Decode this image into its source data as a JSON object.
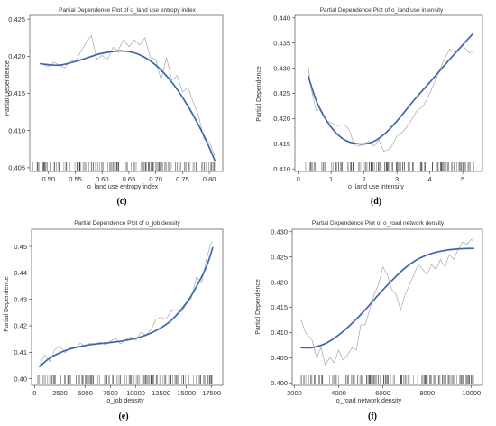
{
  "colors": {
    "smooth": "#3d67a8",
    "raw": "#9a9a9a",
    "rug": "#333333",
    "frame": "#333333"
  },
  "chart_data": [
    {
      "type": "line",
      "caption": "(c)",
      "title": "Partial Dependence Plot of o_land use entropy index",
      "xlabel": "o_land use entropy index",
      "ylabel": "Partial Dependence",
      "xlim": [
        0.465,
        0.825
      ],
      "ylim": [
        0.4045,
        0.4255
      ],
      "xticks": [
        0.5,
        0.55,
        0.6,
        0.65,
        0.7,
        0.75,
        0.8
      ],
      "xtick_labels": [
        "0.50",
        "0.55",
        "0.60",
        "0.65",
        "0.70",
        "0.75",
        "0.80"
      ],
      "yticks": [
        0.405,
        0.41,
        0.415,
        0.42,
        0.425
      ],
      "ytick_labels": [
        "0.405",
        "0.410",
        "0.415",
        "0.420",
        "0.425"
      ],
      "series": [
        {
          "role": "smooth",
          "x": [
            0.485,
            0.52,
            0.56,
            0.6,
            0.64,
            0.67,
            0.7,
            0.73,
            0.76,
            0.79,
            0.81
          ],
          "y": [
            0.419,
            0.4188,
            0.4195,
            0.4204,
            0.4207,
            0.4202,
            0.4188,
            0.4165,
            0.4133,
            0.4093,
            0.406
          ]
        },
        {
          "role": "raw",
          "x": [
            0.485,
            0.5,
            0.51,
            0.52,
            0.53,
            0.54,
            0.55,
            0.56,
            0.57,
            0.58,
            0.59,
            0.6,
            0.61,
            0.62,
            0.63,
            0.64,
            0.65,
            0.66,
            0.67,
            0.68,
            0.69,
            0.7,
            0.71,
            0.72,
            0.73,
            0.74,
            0.75,
            0.76,
            0.77,
            0.78,
            0.79,
            0.8,
            0.81
          ],
          "y": [
            0.419,
            0.4186,
            0.4192,
            0.4188,
            0.4184,
            0.4195,
            0.4192,
            0.4206,
            0.4218,
            0.4228,
            0.4196,
            0.4201,
            0.4195,
            0.4212,
            0.4208,
            0.4222,
            0.4213,
            0.4222,
            0.4215,
            0.4225,
            0.4198,
            0.4196,
            0.4168,
            0.4198,
            0.4168,
            0.4174,
            0.4152,
            0.4158,
            0.4138,
            0.412,
            0.4088,
            0.4085,
            0.4066
          ]
        }
      ],
      "rug_range": [
        0.47,
        0.81
      ]
    },
    {
      "type": "line",
      "caption": "(d)",
      "title": "Partial Dependence Plot of o_land use intensity",
      "xlabel": "o_land use intensity",
      "ylabel": "Partial Dependence",
      "xlim": [
        -0.1,
        5.6
      ],
      "ylim": [
        0.4095,
        0.4405
      ],
      "xticks": [
        0,
        1,
        2,
        3,
        4,
        5
      ],
      "xtick_labels": [
        "0",
        "1",
        "2",
        "3",
        "4",
        "5"
      ],
      "yticks": [
        0.41,
        0.415,
        0.42,
        0.425,
        0.43,
        0.435,
        0.44
      ],
      "ytick_labels": [
        "0.410",
        "0.415",
        "0.420",
        "0.425",
        "0.430",
        "0.435",
        "0.440"
      ],
      "series": [
        {
          "role": "smooth",
          "x": [
            0.3,
            0.6,
            1.0,
            1.4,
            1.8,
            2.2,
            2.6,
            3.0,
            3.5,
            4.0,
            4.5,
            5.3
          ],
          "y": [
            0.4285,
            0.4228,
            0.4183,
            0.4158,
            0.415,
            0.4152,
            0.4168,
            0.4195,
            0.4235,
            0.4272,
            0.431,
            0.4368
          ]
        },
        {
          "role": "raw",
          "x": [
            0.3,
            0.4,
            0.55,
            0.7,
            0.85,
            1.0,
            1.2,
            1.4,
            1.55,
            1.7,
            1.85,
            2.0,
            2.15,
            2.3,
            2.45,
            2.6,
            2.8,
            3.0,
            3.2,
            3.4,
            3.6,
            3.8,
            4.0,
            4.2,
            4.4,
            4.6,
            4.8,
            5.0,
            5.2,
            5.35
          ],
          "y": [
            0.4305,
            0.4258,
            0.4215,
            0.4218,
            0.4196,
            0.4192,
            0.4186,
            0.4188,
            0.4178,
            0.4148,
            0.4145,
            0.415,
            0.4155,
            0.4145,
            0.4158,
            0.4135,
            0.414,
            0.4165,
            0.4175,
            0.4192,
            0.4215,
            0.4225,
            0.425,
            0.428,
            0.4312,
            0.4338,
            0.433,
            0.4345,
            0.433,
            0.4335
          ]
        }
      ],
      "rug_range": [
        0.2,
        5.35
      ]
    },
    {
      "type": "line",
      "caption": "(e)",
      "title": "Partial Dependence Plot of o_job density",
      "xlabel": "o_job density",
      "ylabel": "Partial Dependence",
      "xlim": [
        -300,
        18600
      ],
      "ylim": [
        0.3975,
        0.4565
      ],
      "xticks": [
        0,
        2500,
        5000,
        7500,
        10000,
        12500,
        15000,
        17500
      ],
      "xtick_labels": [
        "0",
        "2500",
        "5000",
        "7500",
        "10000",
        "12500",
        "15000",
        "17500"
      ],
      "yticks": [
        0.4,
        0.41,
        0.42,
        0.43,
        0.44,
        0.45
      ],
      "ytick_labels": [
        "0.40",
        "0.41",
        "0.42",
        "0.43",
        "0.44",
        "0.45"
      ],
      "series": [
        {
          "role": "smooth",
          "x": [
            500,
            1500,
            3000,
            4500,
            6000,
            7500,
            9000,
            10500,
            12000,
            13500,
            15000,
            16000,
            17000,
            17600
          ],
          "y": [
            0.4046,
            0.4078,
            0.4106,
            0.4122,
            0.4131,
            0.4137,
            0.4145,
            0.4158,
            0.4182,
            0.422,
            0.4286,
            0.4348,
            0.4425,
            0.4495
          ]
        },
        {
          "role": "raw",
          "x": [
            500,
            1000,
            1500,
            2000,
            2500,
            3000,
            3500,
            4000,
            4500,
            5000,
            5500,
            6000,
            6500,
            7000,
            7500,
            8000,
            8500,
            9000,
            9500,
            10000,
            10500,
            11000,
            11500,
            12000,
            12500,
            13000,
            13500,
            14000,
            14500,
            15000,
            15500,
            16000,
            16500,
            17000,
            17500
          ],
          "y": [
            0.4052,
            0.409,
            0.4065,
            0.411,
            0.4125,
            0.4098,
            0.4118,
            0.4115,
            0.4135,
            0.4122,
            0.4135,
            0.4132,
            0.4138,
            0.4128,
            0.4142,
            0.4152,
            0.4132,
            0.4148,
            0.4158,
            0.4145,
            0.4175,
            0.4165,
            0.4185,
            0.4225,
            0.4232,
            0.4225,
            0.4255,
            0.4262,
            0.4252,
            0.4282,
            0.4305,
            0.4385,
            0.4362,
            0.4455,
            0.452
          ]
        }
      ],
      "rug_range": [
        300,
        17600
      ]
    },
    {
      "type": "line",
      "caption": "(f)",
      "title": "Partial Dependence Plot of o_road network density",
      "xlabel": "o_road network density",
      "ylabel": "Partial Dependence",
      "xlim": [
        1900,
        10500
      ],
      "ylim": [
        0.3995,
        0.4305
      ],
      "xticks": [
        2000,
        4000,
        6000,
        8000,
        10000
      ],
      "xtick_labels": [
        "2000",
        "4000",
        "6000",
        "8000",
        "10000"
      ],
      "yticks": [
        0.4,
        0.405,
        0.41,
        0.415,
        0.42,
        0.425,
        0.43
      ],
      "ytick_labels": [
        "0.400",
        "0.405",
        "0.410",
        "0.415",
        "0.420",
        "0.425",
        "0.430"
      ],
      "series": [
        {
          "role": "smooth",
          "x": [
            2300,
            2800,
            3400,
            4000,
            4600,
            5200,
            5800,
            6400,
            7000,
            7600,
            8200,
            8800,
            9400,
            10100
          ],
          "y": [
            0.407,
            0.407,
            0.4078,
            0.4095,
            0.4118,
            0.4145,
            0.4175,
            0.4203,
            0.4228,
            0.4246,
            0.4257,
            0.4263,
            0.4266,
            0.4267
          ]
        },
        {
          "role": "raw",
          "x": [
            2300,
            2500,
            2800,
            3000,
            3200,
            3400,
            3600,
            3800,
            4000,
            4200,
            4400,
            4600,
            4800,
            5000,
            5200,
            5400,
            5600,
            5800,
            6000,
            6200,
            6400,
            6600,
            6800,
            7000,
            7200,
            7400,
            7600,
            7800,
            8000,
            8200,
            8400,
            8600,
            8800,
            9000,
            9200,
            9400,
            9600,
            9800,
            10000,
            10100
          ],
          "y": [
            0.4125,
            0.41,
            0.4085,
            0.405,
            0.407,
            0.4035,
            0.405,
            0.404,
            0.4065,
            0.4045,
            0.4055,
            0.407,
            0.4065,
            0.4115,
            0.4115,
            0.4145,
            0.4175,
            0.4195,
            0.423,
            0.4215,
            0.4185,
            0.4175,
            0.4145,
            0.4175,
            0.4195,
            0.4215,
            0.4235,
            0.4225,
            0.4215,
            0.4235,
            0.4225,
            0.4245,
            0.423,
            0.4255,
            0.4245,
            0.4265,
            0.428,
            0.4275,
            0.4285,
            0.428
          ]
        }
      ],
      "rug_range": [
        2300,
        10100
      ]
    }
  ]
}
